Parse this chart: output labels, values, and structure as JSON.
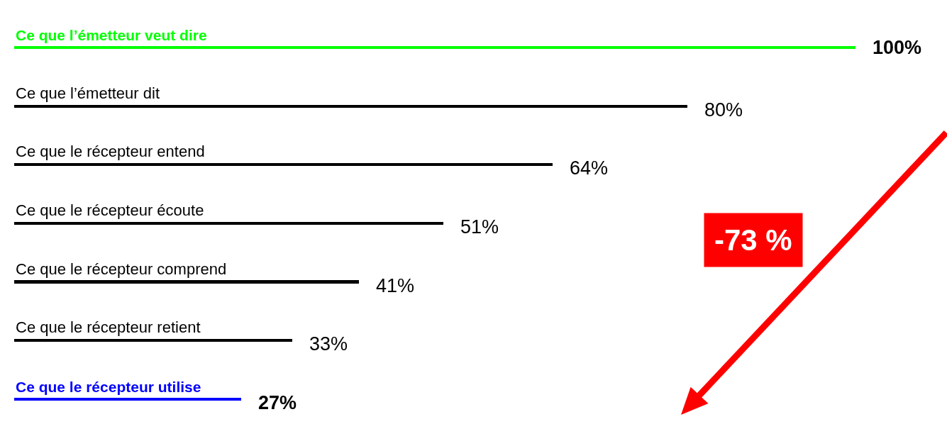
{
  "chart_data": {
    "type": "bar",
    "orientation": "horizontal",
    "categories": [
      "Ce que l’émetteur veut dire",
      "Ce que l’émetteur dit",
      "Ce que le récepteur entend",
      "Ce que le récepteur écoute",
      "Ce que le récepteur comprend",
      "Ce que le récepteur retient",
      "Ce que le récepteur utilise"
    ],
    "values": [
      100,
      80,
      64,
      51,
      41,
      33,
      27
    ],
    "value_labels": [
      "100%",
      "80%",
      "64%",
      "51%",
      "41%",
      "33%",
      "27%"
    ],
    "colors": [
      "#00ff00",
      "#000000",
      "#000000",
      "#000000",
      "#000000",
      "#000000",
      "#0000ff"
    ],
    "annotations": [
      "-73 %"
    ]
  }
}
